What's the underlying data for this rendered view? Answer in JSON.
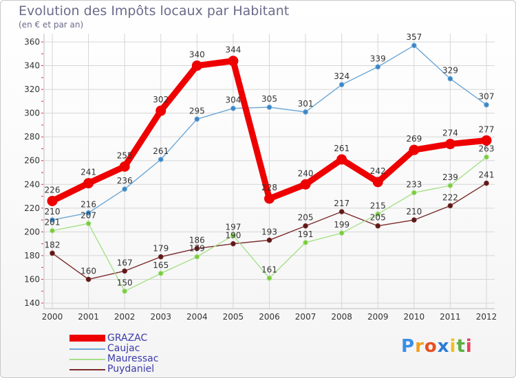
{
  "title": "Evolution des Impôts locaux par Habitant",
  "subtitle": "(en € et par an)",
  "logo": {
    "text": "Proxiti",
    "letters": [
      "P",
      "r",
      "o",
      "x",
      "i",
      "t",
      "i"
    ],
    "colors": [
      "#3a8ee6",
      "#f0a020",
      "#e85020",
      "#2a7ad6",
      "#f0c020",
      "#5ab040",
      "#e84060"
    ]
  },
  "chart_data": {
    "type": "line",
    "categories": [
      "2000",
      "2001",
      "2002",
      "2003",
      "2004",
      "2005",
      "2006",
      "2007",
      "2008",
      "2009",
      "2010",
      "2011",
      "2012"
    ],
    "ylim": [
      140,
      360
    ],
    "yticks": [
      140,
      160,
      180,
      200,
      220,
      240,
      260,
      280,
      300,
      320,
      340,
      360
    ],
    "grid": true,
    "legend_position": "bottom-left",
    "series": [
      {
        "name": "GRAZAC",
        "color": "#ee0000",
        "values": [
          226,
          241,
          255,
          302,
          340,
          344,
          228,
          240,
          261,
          242,
          269,
          274,
          277
        ]
      },
      {
        "name": "Caujac",
        "color": "#6aa6d6",
        "marker": "#3a86c6",
        "values": [
          210,
          216,
          236,
          261,
          295,
          304,
          305,
          301,
          324,
          339,
          357,
          329,
          307
        ]
      },
      {
        "name": "Mauressac",
        "color": "#a6e08a",
        "marker": "#7acc3a",
        "values": [
          201,
          207,
          150,
          165,
          179,
          197,
          161,
          191,
          199,
          215,
          233,
          239,
          263
        ]
      },
      {
        "name": "Puydaniel",
        "color": "#7a2a2a",
        "marker": "#5a1a1a",
        "values": [
          182,
          160,
          167,
          179,
          186,
          190,
          193,
          205,
          217,
          205,
          210,
          222,
          241
        ]
      }
    ]
  }
}
